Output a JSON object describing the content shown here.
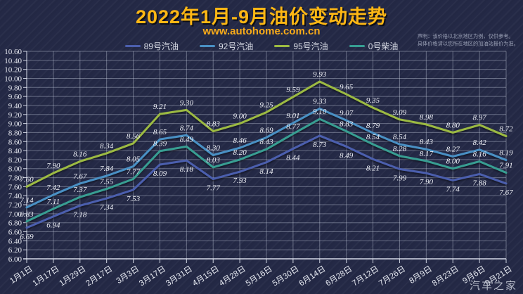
{
  "title": "2022年1月-9月油价变动走势",
  "subtitle": "www.autohome.com.cn",
  "disclaimer": [
    "声明：该价格以北京地区为例，仅供参考。",
    "具体价格请以您所在地区的加油站报价为准。"
  ],
  "watermark": "汽车之家",
  "colors": {
    "background": "#242946",
    "title": "#fdb714",
    "subtitle": "#f9ab19",
    "grid": "rgba(208,214,230,0.40)",
    "axis": "rgba(235,240,250,0.85)",
    "tick_label": "#e9ebf2",
    "data_label": "#eef0f6",
    "legend_text": "#d9dce6",
    "disclaimer_text": "#9aa0b5",
    "watermark_text": "#ccd0dc"
  },
  "chart_data": {
    "type": "line",
    "title": "2022年1月-9月油价变动走势",
    "xlabel": "",
    "ylabel": "",
    "ylim": [
      6.0,
      10.6
    ],
    "ytick_step": 0.2,
    "grid": true,
    "legend_position": "top",
    "value_labels": true,
    "categories": [
      "1月1日",
      "1月17日",
      "1月29日",
      "2月17日",
      "3月3日",
      "3月17日",
      "3月31日",
      "4月15日",
      "4月28日",
      "5月16日",
      "5月30日",
      "6月14日",
      "6月28日",
      "7月12日",
      "7月26日",
      "8月9日",
      "8月23日",
      "9月6日",
      "9月21日"
    ],
    "series": [
      {
        "name": "89号汽油",
        "color": "#4c5fae",
        "label_side": "below",
        "values": [
          6.69,
          6.94,
          7.18,
          7.34,
          7.53,
          8.09,
          8.18,
          7.77,
          7.93,
          8.14,
          8.44,
          8.73,
          8.49,
          8.21,
          7.99,
          7.9,
          7.74,
          7.88,
          7.67
        ]
      },
      {
        "name": "92号汽油",
        "color": "#4a90c4",
        "label_side": "above",
        "values": [
          7.14,
          7.42,
          7.67,
          7.84,
          8.05,
          8.65,
          8.74,
          8.3,
          8.46,
          8.69,
          9.01,
          9.33,
          9.07,
          8.79,
          8.54,
          8.43,
          8.27,
          8.42,
          8.19
        ]
      },
      {
        "name": "95号汽油",
        "color": "#9cba42",
        "label_side": "above",
        "values": [
          7.6,
          7.9,
          8.16,
          8.34,
          8.56,
          9.21,
          9.3,
          8.83,
          9.0,
          9.25,
          9.59,
          9.93,
          9.65,
          9.35,
          9.09,
          8.98,
          8.8,
          8.97,
          8.72
        ]
      },
      {
        "name": "0号柴油",
        "color": "#379e92",
        "label_side": "above",
        "values": [
          6.83,
          7.11,
          7.37,
          7.55,
          7.77,
          8.39,
          8.49,
          8.03,
          8.2,
          8.43,
          8.77,
          9.1,
          8.83,
          8.54,
          8.28,
          8.17,
          8.0,
          8.16,
          7.91
        ]
      }
    ]
  }
}
